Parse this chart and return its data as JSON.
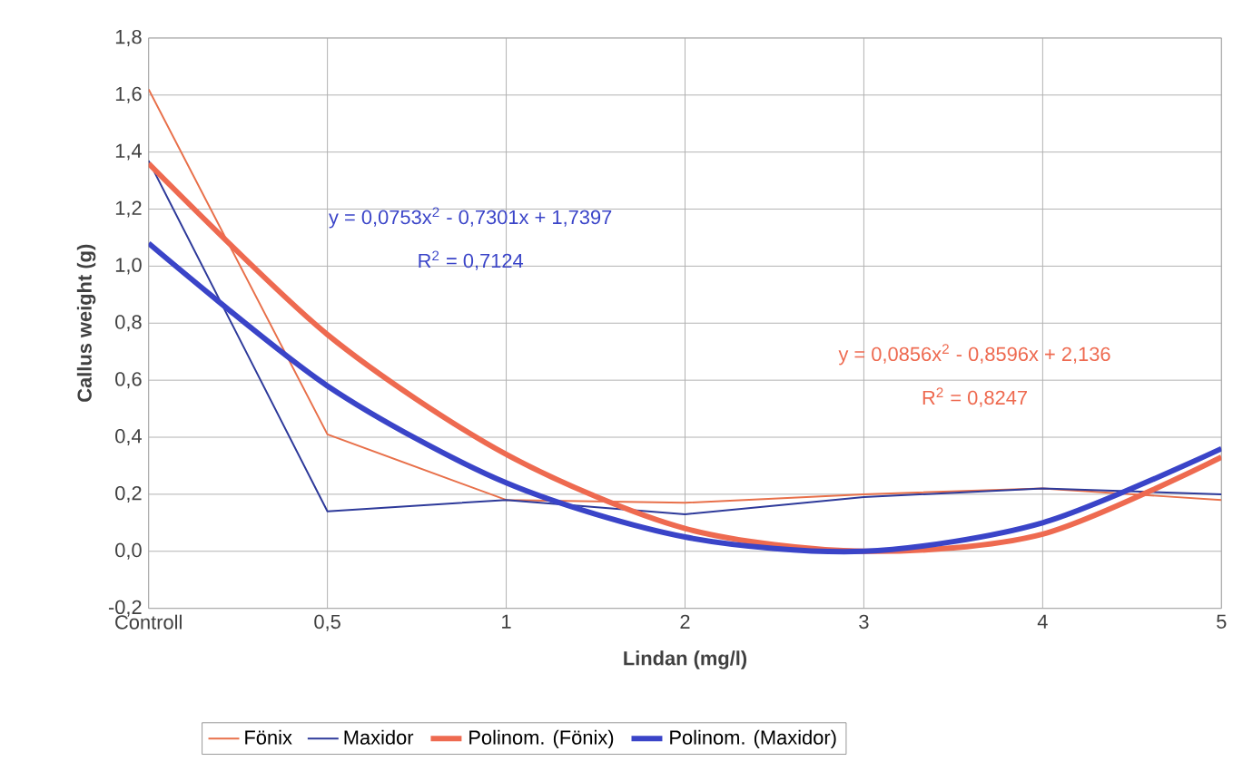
{
  "chart_data": {
    "type": "line",
    "xlabel": "Lindan (mg/l)",
    "ylabel": "Callus weight (g)",
    "categories": [
      "Controll",
      "0,5",
      "1",
      "2",
      "3",
      "4",
      "5"
    ],
    "series": [
      {
        "name": "Fönix",
        "color": "#e8704a",
        "values": [
          1.62,
          0.41,
          0.18,
          0.17,
          0.2,
          0.22,
          0.18
        ]
      },
      {
        "name": "Maxidor",
        "color": "#2e3a9a",
        "values": [
          1.37,
          0.14,
          0.18,
          0.13,
          0.19,
          0.22,
          0.2
        ]
      },
      {
        "name": "Polinom. (Fönix)",
        "color": "#ee6a50",
        "values": [
          1.36,
          0.76,
          0.34,
          0.08,
          0.0,
          0.06,
          0.33
        ]
      },
      {
        "name": "Polinom. (Maxidor)",
        "color": "#3a44c8",
        "values": [
          1.08,
          0.58,
          0.24,
          0.05,
          0.0,
          0.1,
          0.36
        ]
      }
    ],
    "ylim": [
      -0.2,
      1.8
    ],
    "yticks": [
      {
        "value": -0.2,
        "label": "-0,2"
      },
      {
        "value": 0,
        "label": "0,0"
      },
      {
        "value": 0.2,
        "label": "0,2"
      },
      {
        "value": 0.4,
        "label": "0,4"
      },
      {
        "value": 0.6,
        "label": "0,6"
      },
      {
        "value": 0.8,
        "label": "0,8"
      },
      {
        "value": 1.0,
        "label": "1,0"
      },
      {
        "value": 1.2,
        "label": "1,2"
      },
      {
        "value": 1.4,
        "label": "1,4"
      },
      {
        "value": 1.6,
        "label": "1,6"
      },
      {
        "value": 1.8,
        "label": "1,8"
      }
    ],
    "annotations": [
      "y = 0,0753x$^{2}$ - 0,7301x + 1,7397",
      "R$^{2}$ = 0,7124",
      "y = 0,0856x$^{2}$ - 0,8596x + 2,136",
      "R$^{2}$ = 0,8247"
    ],
    "grid": true,
    "legend": "bottom",
    "marker": "none",
    "line_style": "solid"
  }
}
